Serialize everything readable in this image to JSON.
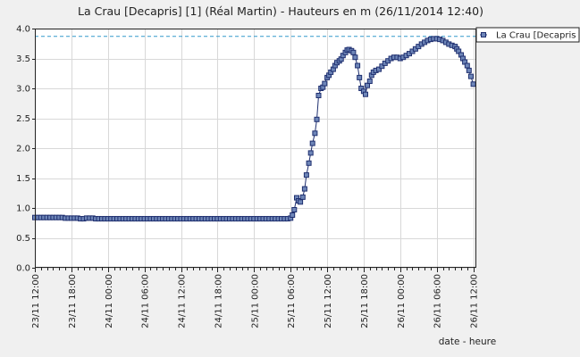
{
  "chart_data": {
    "type": "line",
    "title": "La Crau [Decapris] [1] (Réal Martin) - Hauteurs en m (26/11/2014 12:40)",
    "xlabel": "date - heure",
    "ylabel": "",
    "x_tick_labels": [
      "23/11 12:00",
      "23/11 18:00",
      "24/11 00:00",
      "24/11 06:00",
      "24/11 12:00",
      "24/11 18:00",
      "25/11 00:00",
      "25/11 06:00",
      "25/11 12:00",
      "25/11 18:00",
      "26/11 00:00",
      "26/11 06:00",
      "26/11 12:00"
    ],
    "x_tick_hours": [
      0,
      6,
      12,
      18,
      24,
      30,
      36,
      42,
      48,
      54,
      60,
      66,
      72
    ],
    "xlim_hours": [
      0,
      72.5
    ],
    "y_ticks": [
      0.0,
      0.5,
      1.0,
      1.5,
      2.0,
      2.5,
      3.0,
      3.5,
      4.0
    ],
    "y_tick_labels": [
      "0.0",
      "0.5",
      "1.0",
      "1.5",
      "2.0",
      "2.5",
      "3.0",
      "3.5",
      "4.0"
    ],
    "ylim": [
      0,
      4.0
    ],
    "grid": true,
    "legend": "top-right",
    "threshold": {
      "value": 3.87,
      "color": "#3399cc"
    },
    "series": [
      {
        "name": "La Crau [Decapris",
        "color": "#1f2f6f",
        "marker_fill": "#6e86b8",
        "x_hours": [
          0,
          0.5,
          1,
          1.5,
          2,
          2.5,
          3,
          3.5,
          4,
          4.5,
          5,
          5.5,
          6,
          6.5,
          7,
          7.5,
          8,
          8.5,
          9,
          9.5,
          10,
          10.5,
          11,
          11.5,
          12,
          12.5,
          13,
          13.5,
          14,
          14.5,
          15,
          15.5,
          16,
          16.5,
          17,
          17.5,
          18,
          18.5,
          19,
          19.5,
          20,
          20.5,
          21,
          21.5,
          22,
          22.5,
          23,
          23.5,
          24,
          24.5,
          25,
          25.5,
          26,
          26.5,
          27,
          27.5,
          28,
          28.5,
          29,
          29.5,
          30,
          30.5,
          31,
          31.5,
          32,
          32.5,
          33,
          33.5,
          34,
          34.5,
          35,
          35.5,
          36,
          36.5,
          37,
          37.5,
          38,
          38.5,
          39,
          39.5,
          40,
          40.5,
          41,
          41.5,
          42,
          42.3,
          42.6,
          43,
          43.3,
          43.6,
          44,
          44.3,
          44.6,
          45,
          45.3,
          45.6,
          46,
          46.3,
          46.6,
          47,
          47.3,
          47.6,
          48,
          48.3,
          48.6,
          49,
          49.3,
          49.6,
          50,
          50.3,
          50.6,
          51,
          51.3,
          51.6,
          52,
          52.3,
          52.6,
          53,
          53.3,
          53.6,
          54,
          54.3,
          54.6,
          55,
          55.3,
          55.6,
          56,
          56.5,
          57,
          57.5,
          58,
          58.5,
          59,
          59.5,
          60,
          60.5,
          61,
          61.5,
          62,
          62.5,
          63,
          63.5,
          64,
          64.5,
          65,
          65.5,
          66,
          66.5,
          67,
          67.5,
          68,
          68.5,
          69,
          69.3,
          69.6,
          70,
          70.3,
          70.6,
          71,
          71.3,
          71.6,
          72
        ],
        "values": [
          0.84,
          0.84,
          0.84,
          0.84,
          0.84,
          0.84,
          0.84,
          0.84,
          0.84,
          0.84,
          0.83,
          0.83,
          0.83,
          0.83,
          0.83,
          0.82,
          0.82,
          0.83,
          0.83,
          0.83,
          0.82,
          0.82,
          0.82,
          0.82,
          0.82,
          0.82,
          0.82,
          0.82,
          0.82,
          0.82,
          0.82,
          0.82,
          0.82,
          0.82,
          0.82,
          0.82,
          0.82,
          0.82,
          0.82,
          0.82,
          0.82,
          0.82,
          0.82,
          0.82,
          0.82,
          0.82,
          0.82,
          0.82,
          0.82,
          0.82,
          0.82,
          0.82,
          0.82,
          0.82,
          0.82,
          0.82,
          0.82,
          0.82,
          0.82,
          0.82,
          0.82,
          0.82,
          0.82,
          0.82,
          0.82,
          0.82,
          0.82,
          0.82,
          0.82,
          0.82,
          0.82,
          0.82,
          0.82,
          0.82,
          0.82,
          0.82,
          0.82,
          0.82,
          0.82,
          0.82,
          0.82,
          0.82,
          0.82,
          0.82,
          0.83,
          0.88,
          0.97,
          1.17,
          1.12,
          1.1,
          1.18,
          1.32,
          1.55,
          1.75,
          1.92,
          2.08,
          2.25,
          2.48,
          2.88,
          3.0,
          3.02,
          3.08,
          3.18,
          3.22,
          3.27,
          3.32,
          3.38,
          3.43,
          3.46,
          3.49,
          3.55,
          3.6,
          3.64,
          3.65,
          3.63,
          3.6,
          3.52,
          3.38,
          3.18,
          3.0,
          2.95,
          2.9,
          3.05,
          3.12,
          3.22,
          3.27,
          3.3,
          3.32,
          3.37,
          3.42,
          3.46,
          3.5,
          3.52,
          3.52,
          3.5,
          3.52,
          3.55,
          3.58,
          3.62,
          3.66,
          3.7,
          3.74,
          3.77,
          3.8,
          3.82,
          3.83,
          3.83,
          3.82,
          3.8,
          3.77,
          3.74,
          3.72,
          3.7,
          3.66,
          3.62,
          3.56,
          3.5,
          3.44,
          3.38,
          3.3,
          3.2,
          3.07
        ]
      }
    ]
  }
}
